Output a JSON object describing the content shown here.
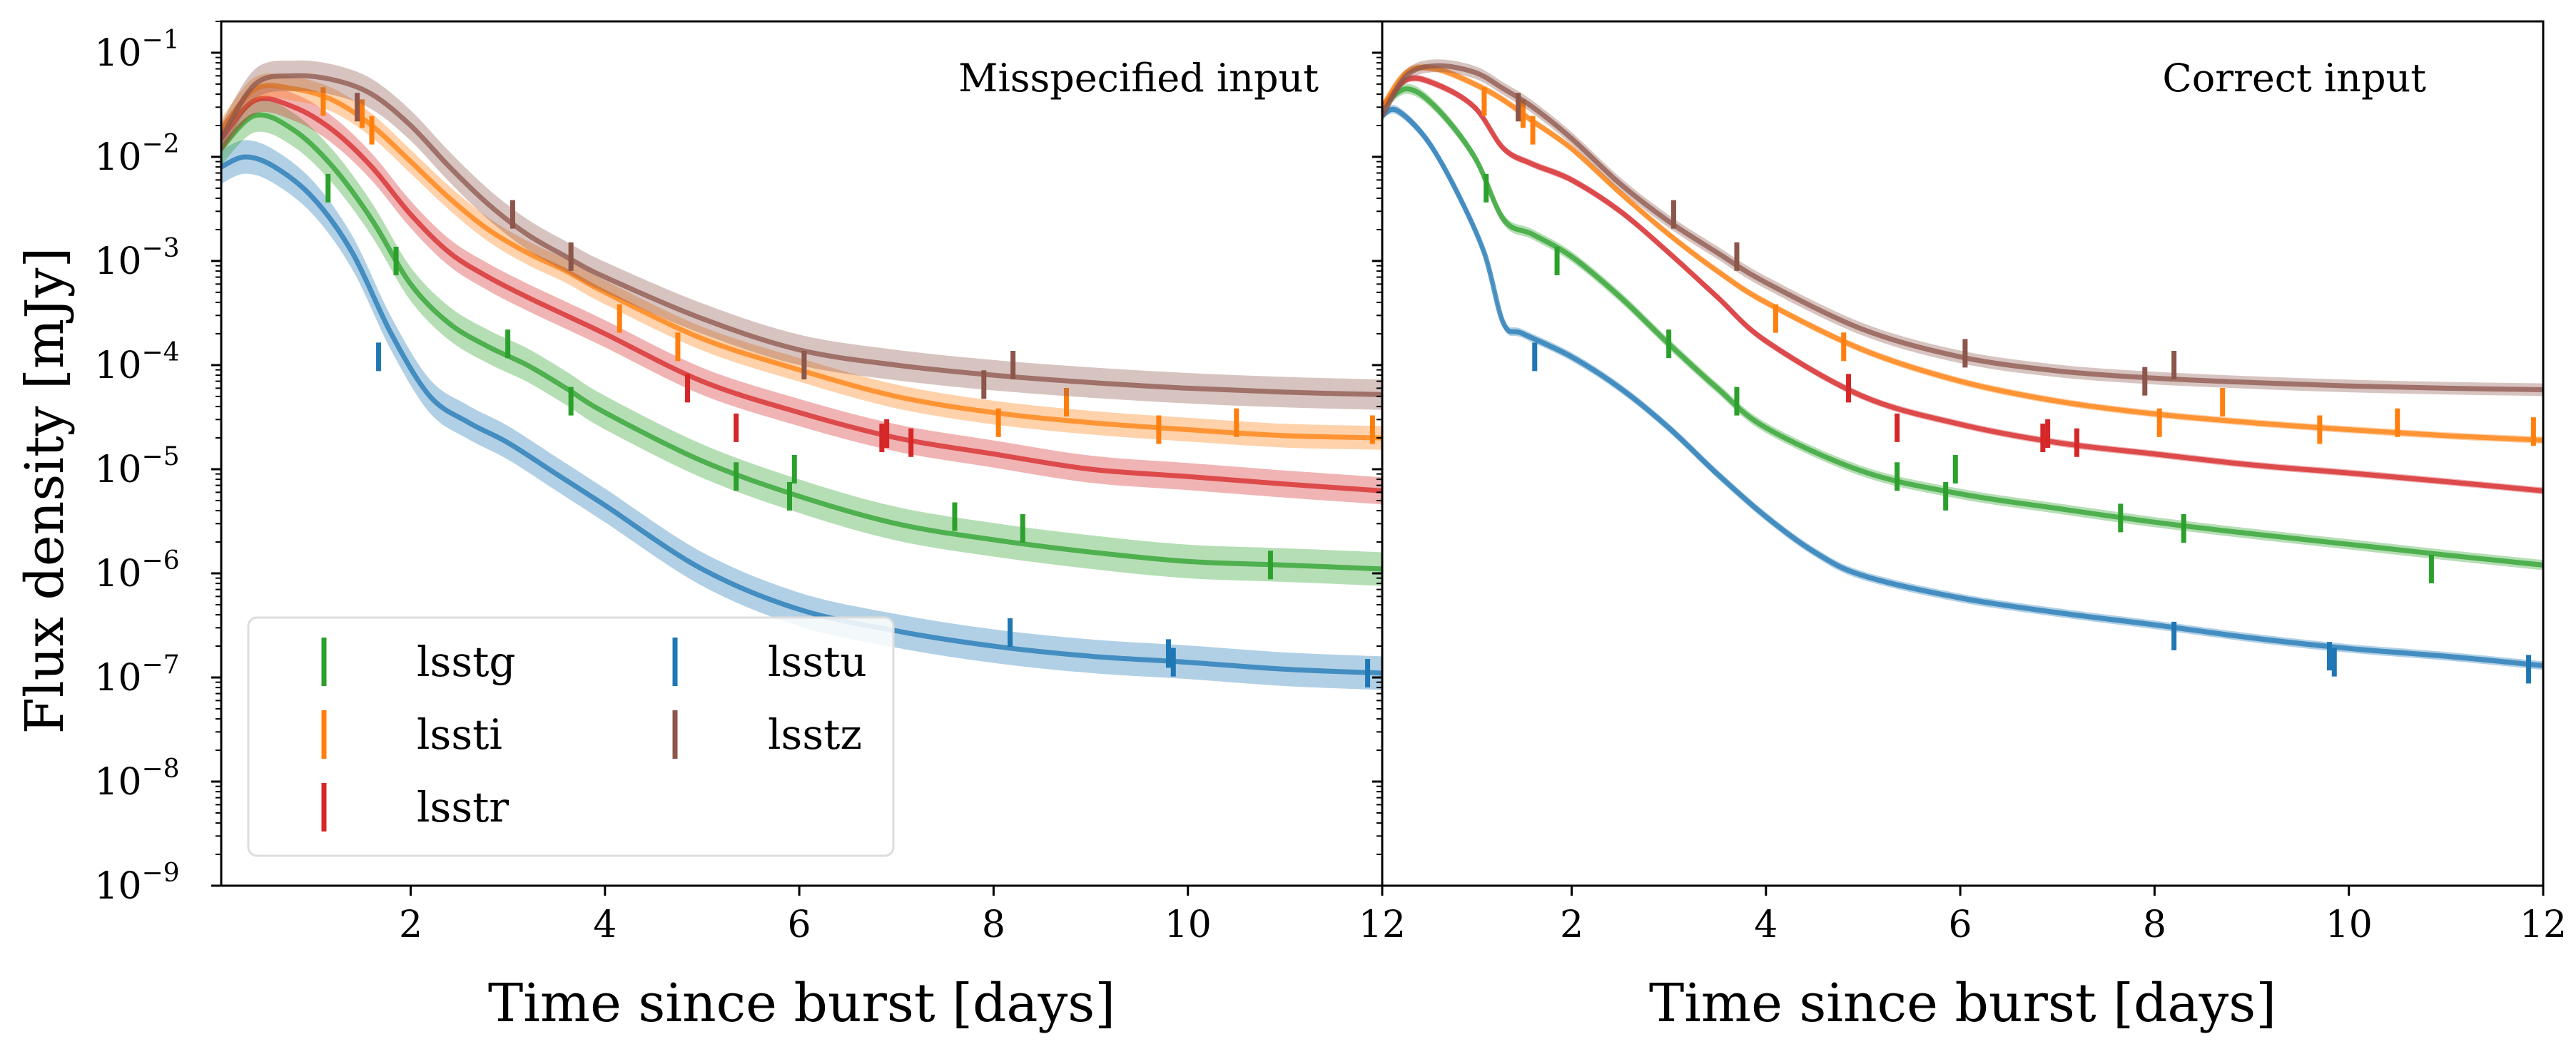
{
  "chart_data": {
    "type": "line",
    "ylabel": "Flux density [mJy]",
    "y_scale": "log",
    "ylim": [
      1e-09,
      0.2
    ],
    "y_tick_labels": [
      {
        "base": "10",
        "exp": "−1",
        "value": 0.1
      },
      {
        "base": "10",
        "exp": "−2",
        "value": 0.01
      },
      {
        "base": "10",
        "exp": "−3",
        "value": 0.001
      },
      {
        "base": "10",
        "exp": "−4",
        "value": 0.0001
      },
      {
        "base": "10",
        "exp": "−5",
        "value": 1e-05
      },
      {
        "base": "10",
        "exp": "−6",
        "value": 1e-06
      },
      {
        "base": "10",
        "exp": "−7",
        "value": 1e-07
      },
      {
        "base": "10",
        "exp": "−8",
        "value": 1e-08
      },
      {
        "base": "10",
        "exp": "−9",
        "value": 1e-09
      }
    ],
    "legend": {
      "placement": "lower-left",
      "entries": [
        {
          "name": "lsstg",
          "color": "#2ca02c"
        },
        {
          "name": "lssti",
          "color": "#ff7f0e"
        },
        {
          "name": "lsstr",
          "color": "#d62728"
        },
        {
          "name": "lsstu",
          "color": "#1f77b4"
        },
        {
          "name": "lsstz",
          "color": "#8c564b"
        }
      ]
    },
    "panels": [
      {
        "title": "Misspecified input",
        "xlabel": "Time since burst [days]",
        "xlim": [
          0.05,
          12
        ],
        "x_ticks": [
          2,
          4,
          6,
          8,
          10,
          12
        ],
        "x_tick_labels": [
          "2",
          "4",
          "6",
          "8",
          "10",
          "12"
        ],
        "series": [
          {
            "name": "lsstu",
            "color": "#1f77b4",
            "band_factor": 1.45,
            "x": [
              0.05,
              0.3,
              0.6,
              1.0,
              1.4,
              1.8,
              2.2,
              2.6,
              3.0,
              3.5,
              4.0,
              5.0,
              6.0,
              7.0,
              8.0,
              9.0,
              10.0,
              11.0,
              12.0
            ],
            "y": [
              0.008,
              0.01,
              0.008,
              0.004,
              0.0012,
              0.0002,
              5e-05,
              2.8e-05,
              1.8e-05,
              9e-06,
              4.5e-06,
              1.1e-06,
              4.5e-07,
              2.8e-07,
              2e-07,
              1.6e-07,
              1.4e-07,
              1.2e-07,
              1.1e-07
            ],
            "points": [
              {
                "x": 1.67,
                "y": 0.00012
              },
              {
                "x": 8.17,
                "y": 2.7e-07
              },
              {
                "x": 9.8,
                "y": 1.7e-07
              },
              {
                "x": 9.85,
                "y": 1.4e-07
              },
              {
                "x": 11.85,
                "y": 1.1e-07
              }
            ]
          },
          {
            "name": "lsstg",
            "color": "#2ca02c",
            "band_factor": 1.45,
            "x": [
              0.05,
              0.4,
              0.8,
              1.2,
              1.6,
              2.0,
              2.4,
              2.8,
              3.2,
              3.6,
              4.0,
              5.0,
              6.0,
              7.0,
              8.0,
              9.0,
              10.0,
              11.0,
              12.0
            ],
            "y": [
              0.012,
              0.025,
              0.018,
              0.008,
              0.0025,
              0.0006,
              0.00025,
              0.00015,
              0.0001,
              6e-05,
              3.5e-05,
              1.2e-05,
              5.5e-06,
              3e-06,
              2.1e-06,
              1.6e-06,
              1.3e-06,
              1.2e-06,
              1.1e-06
            ],
            "points": [
              {
                "x": 1.15,
                "y": 0.005
              },
              {
                "x": 1.85,
                "y": 0.001
              },
              {
                "x": 3.0,
                "y": 0.00016
              },
              {
                "x": 3.65,
                "y": 4.5e-05
              },
              {
                "x": 5.35,
                "y": 8.5e-06
              },
              {
                "x": 5.9,
                "y": 5.5e-06
              },
              {
                "x": 5.95,
                "y": 1e-05
              },
              {
                "x": 7.6,
                "y": 3.5e-06
              },
              {
                "x": 8.3,
                "y": 2.7e-06
              },
              {
                "x": 10.85,
                "y": 1.2e-06
              }
            ]
          },
          {
            "name": "lsstr",
            "color": "#d62728",
            "band_factor": 1.35,
            "x": [
              0.05,
              0.4,
              0.8,
              1.2,
              1.6,
              2.0,
              2.4,
              2.8,
              3.2,
              3.6,
              4.0,
              5.0,
              6.0,
              7.0,
              8.0,
              9.0,
              10.0,
              11.0,
              12.0
            ],
            "y": [
              0.015,
              0.035,
              0.03,
              0.018,
              0.008,
              0.0028,
              0.0012,
              0.0007,
              0.00045,
              0.0003,
              0.0002,
              7e-05,
              3.5e-05,
              2e-05,
              1.4e-05,
              1e-05,
              8.5e-06,
              7.2e-06,
              6.2e-06
            ],
            "points": [
              {
                "x": 4.85,
                "y": 6e-05
              },
              {
                "x": 5.35,
                "y": 2.5e-05
              },
              {
                "x": 6.85,
                "y": 2e-05
              },
              {
                "x": 6.9,
                "y": 2.2e-05
              },
              {
                "x": 7.15,
                "y": 1.8e-05
              }
            ]
          },
          {
            "name": "lssti",
            "color": "#ff7f0e",
            "band_factor": 1.3,
            "x": [
              0.05,
              0.4,
              0.8,
              1.2,
              1.6,
              2.0,
              2.4,
              2.8,
              3.2,
              3.6,
              4.0,
              5.0,
              6.0,
              7.0,
              8.0,
              9.0,
              10.0,
              11.0,
              12.0
            ],
            "y": [
              0.018,
              0.045,
              0.045,
              0.035,
              0.02,
              0.009,
              0.004,
              0.002,
              0.0012,
              0.0008,
              0.0005,
              0.00018,
              9e-05,
              5e-05,
              3.5e-05,
              2.8e-05,
              2.4e-05,
              2.1e-05,
              2e-05
            ],
            "points": [
              {
                "x": 1.1,
                "y": 0.034
              },
              {
                "x": 1.5,
                "y": 0.026
              },
              {
                "x": 1.6,
                "y": 0.018
              },
              {
                "x": 4.15,
                "y": 0.00028
              },
              {
                "x": 4.75,
                "y": 0.00015
              },
              {
                "x": 8.05,
                "y": 2.8e-05
              },
              {
                "x": 8.75,
                "y": 4.4e-05
              },
              {
                "x": 9.7,
                "y": 2.4e-05
              },
              {
                "x": 10.5,
                "y": 2.8e-05
              },
              {
                "x": 11.9,
                "y": 2.4e-05
              }
            ]
          },
          {
            "name": "lsstz",
            "color": "#8c564b",
            "band_factor": 1.4,
            "x": [
              0.05,
              0.4,
              0.8,
              1.2,
              1.6,
              2.0,
              2.4,
              2.8,
              3.2,
              3.6,
              4.0,
              5.0,
              6.0,
              7.0,
              8.0,
              9.0,
              10.0,
              11.0,
              12.0
            ],
            "y": [
              0.015,
              0.05,
              0.06,
              0.055,
              0.04,
              0.02,
              0.008,
              0.0035,
              0.0018,
              0.0011,
              0.0007,
              0.00028,
              0.00014,
              0.0001,
              8e-05,
              6.8e-05,
              6e-05,
              5.5e-05,
              5.2e-05
            ],
            "points": [
              {
                "x": 1.45,
                "y": 0.03
              },
              {
                "x": 3.05,
                "y": 0.0028
              },
              {
                "x": 3.65,
                "y": 0.0011
              },
              {
                "x": 6.05,
                "y": 0.0001
              },
              {
                "x": 7.9,
                "y": 6.5e-05
              },
              {
                "x": 8.2,
                "y": 0.0001
              }
            ]
          }
        ]
      },
      {
        "title": "Correct input",
        "xlabel": "Time since burst [days]",
        "xlim": [
          0.05,
          12
        ],
        "x_ticks": [
          2,
          4,
          6,
          8,
          10,
          12
        ],
        "x_tick_labels": [
          "2",
          "4",
          "6",
          "8",
          "10",
          "12"
        ],
        "series": [
          {
            "name": "lsstu",
            "color": "#1f77b4",
            "band_factor": 1.1,
            "x": [
              0.05,
              0.2,
              0.5,
              0.8,
              1.1,
              1.3,
              1.5,
              2.0,
              2.5,
              3.0,
              3.5,
              4.0,
              4.5,
              5.0,
              6.0,
              7.0,
              8.0,
              9.0,
              10.0,
              11.0,
              12.0
            ],
            "y": [
              0.025,
              0.028,
              0.015,
              0.005,
              0.0012,
              0.00025,
              0.0002,
              0.00012,
              6e-05,
              2.5e-05,
              9e-06,
              3.5e-06,
              1.6e-06,
              9.5e-07,
              5.8e-07,
              4.2e-07,
              3.2e-07,
              2.4e-07,
              1.9e-07,
              1.6e-07,
              1.3e-07
            ],
            "points": [
              {
                "x": 1.62,
                "y": 0.00012
              },
              {
                "x": 8.2,
                "y": 2.5e-07
              },
              {
                "x": 9.8,
                "y": 1.6e-07
              },
              {
                "x": 9.85,
                "y": 1.4e-07
              },
              {
                "x": 11.85,
                "y": 1.2e-07
              }
            ]
          },
          {
            "name": "lsstg",
            "color": "#2ca02c",
            "band_factor": 1.12,
            "x": [
              0.05,
              0.3,
              0.6,
              1.0,
              1.3,
              1.6,
              2.0,
              2.5,
              3.0,
              3.5,
              4.0,
              5.0,
              6.0,
              7.0,
              8.0,
              9.0,
              10.0,
              11.0,
              12.0
            ],
            "y": [
              0.03,
              0.045,
              0.03,
              0.01,
              0.0025,
              0.0018,
              0.0011,
              0.00045,
              0.00016,
              6e-05,
              2.5e-05,
              9.5e-06,
              5.8e-06,
              4.2e-06,
              3.1e-06,
              2.4e-06,
              1.9e-06,
              1.5e-06,
              1.2e-06
            ],
            "points": [
              {
                "x": 1.12,
                "y": 0.005
              },
              {
                "x": 1.85,
                "y": 0.001
              },
              {
                "x": 3.0,
                "y": 0.00016
              },
              {
                "x": 3.7,
                "y": 4.5e-05
              },
              {
                "x": 5.35,
                "y": 8.5e-06
              },
              {
                "x": 5.85,
                "y": 5.5e-06
              },
              {
                "x": 5.95,
                "y": 1e-05
              },
              {
                "x": 7.65,
                "y": 3.4e-06
              },
              {
                "x": 8.3,
                "y": 2.7e-06
              },
              {
                "x": 10.85,
                "y": 1.1e-06
              }
            ]
          },
          {
            "name": "lsstr",
            "color": "#d62728",
            "band_factor": 1.08,
            "x": [
              0.05,
              0.3,
              0.6,
              1.0,
              1.3,
              1.6,
              2.0,
              2.5,
              3.0,
              3.5,
              4.0,
              5.0,
              6.0,
              7.0,
              8.0,
              9.0,
              10.0,
              11.0,
              12.0
            ],
            "y": [
              0.03,
              0.055,
              0.05,
              0.03,
              0.012,
              0.0085,
              0.006,
              0.003,
              0.0012,
              0.00045,
              0.00017,
              5e-05,
              2.7e-05,
              1.8e-05,
              1.4e-05,
              1.1e-05,
              9.2e-06,
              7.6e-06,
              6.2e-06
            ],
            "points": [
              {
                "x": 4.85,
                "y": 6e-05
              },
              {
                "x": 5.35,
                "y": 2.5e-05
              },
              {
                "x": 6.85,
                "y": 2e-05
              },
              {
                "x": 6.9,
                "y": 2.2e-05
              },
              {
                "x": 7.2,
                "y": 1.8e-05
              }
            ]
          },
          {
            "name": "lssti",
            "color": "#ff7f0e",
            "band_factor": 1.08,
            "x": [
              0.05,
              0.3,
              0.6,
              1.0,
              1.3,
              1.6,
              2.0,
              2.5,
              3.0,
              3.5,
              4.0,
              5.0,
              6.0,
              7.0,
              8.0,
              9.0,
              10.0,
              11.0,
              12.0
            ],
            "y": [
              0.03,
              0.065,
              0.07,
              0.05,
              0.035,
              0.022,
              0.012,
              0.0045,
              0.0018,
              0.0008,
              0.0004,
              0.00014,
              7e-05,
              4.5e-05,
              3.4e-05,
              2.8e-05,
              2.4e-05,
              2.1e-05,
              1.9e-05
            ],
            "points": [
              {
                "x": 1.1,
                "y": 0.034
              },
              {
                "x": 1.5,
                "y": 0.026
              },
              {
                "x": 1.6,
                "y": 0.018
              },
              {
                "x": 4.1,
                "y": 0.00028
              },
              {
                "x": 4.8,
                "y": 0.00015
              },
              {
                "x": 8.05,
                "y": 2.8e-05
              },
              {
                "x": 8.7,
                "y": 4.4e-05
              },
              {
                "x": 9.7,
                "y": 2.4e-05
              },
              {
                "x": 10.5,
                "y": 2.8e-05
              },
              {
                "x": 11.9,
                "y": 2.3e-05
              }
            ]
          },
          {
            "name": "lsstz",
            "color": "#8c564b",
            "band_factor": 1.15,
            "x": [
              0.05,
              0.3,
              0.6,
              1.0,
              1.3,
              1.6,
              2.0,
              2.5,
              3.0,
              3.5,
              4.0,
              5.0,
              6.0,
              7.0,
              8.0,
              9.0,
              10.0,
              11.0,
              12.0
            ],
            "y": [
              0.025,
              0.06,
              0.075,
              0.065,
              0.045,
              0.03,
              0.015,
              0.0055,
              0.0024,
              0.0012,
              0.00062,
              0.00022,
              0.00012,
              8.8e-05,
              7.5e-05,
              6.8e-05,
              6.3e-05,
              6e-05,
              5.8e-05
            ],
            "points": [
              {
                "x": 1.45,
                "y": 0.03
              },
              {
                "x": 3.05,
                "y": 0.0028
              },
              {
                "x": 3.7,
                "y": 0.0011
              },
              {
                "x": 6.05,
                "y": 0.00013
              },
              {
                "x": 7.9,
                "y": 7e-05
              },
              {
                "x": 8.2,
                "y": 0.0001
              }
            ]
          }
        ]
      }
    ]
  }
}
